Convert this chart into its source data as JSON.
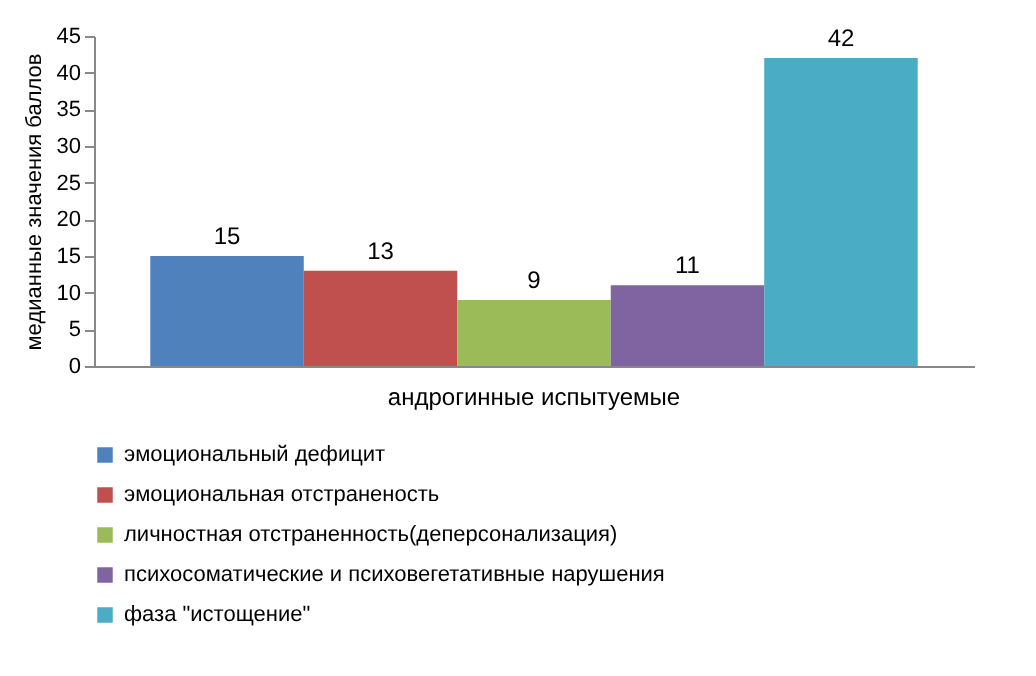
{
  "chart_data": {
    "type": "bar",
    "ylabel": "медианные значения баллов",
    "categories": [
      "андрогинные испытуемые"
    ],
    "series": [
      {
        "name": "эмоциональный дефицит",
        "color": "#4f81bd",
        "values": [
          15
        ]
      },
      {
        "name": "эмоциональная отстраненость",
        "color": "#c0504d",
        "values": [
          13
        ]
      },
      {
        "name": "личностная отстраненность(деперсонализация)",
        "color": "#9bbb59",
        "values": [
          9
        ]
      },
      {
        "name": "психосоматические и психовегетативные нарушения",
        "color": "#8064a2",
        "values": [
          11
        ]
      },
      {
        "name": "фаза \"истощение\"",
        "color": "#4bacc6",
        "values": [
          42
        ]
      }
    ],
    "ylim": [
      0,
      45
    ],
    "yticks": [
      0,
      5,
      10,
      15,
      20,
      25,
      30,
      35,
      40,
      45
    ],
    "grid": false,
    "legend": "bottom",
    "data_labels": true
  }
}
